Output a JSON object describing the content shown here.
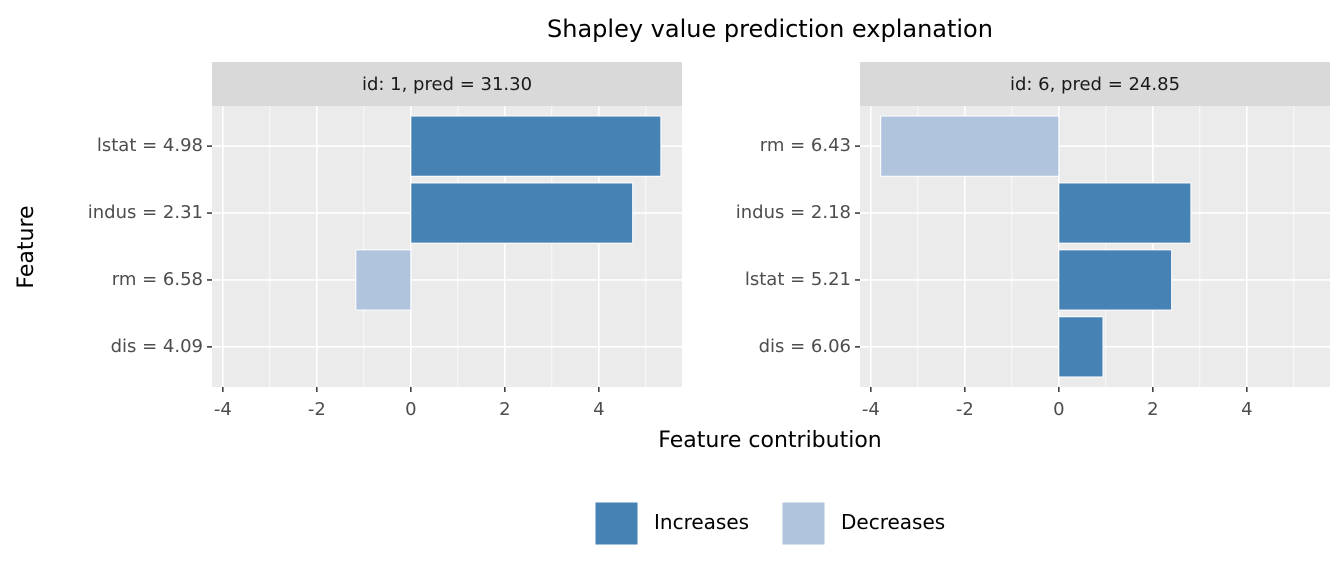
{
  "chart_data": {
    "type": "bar",
    "orientation": "horizontal",
    "title": "Shapley value prediction explanation",
    "xlabel": "Feature contribution",
    "ylabel": "Feature",
    "xlim": [
      -4.23,
      5.77
    ],
    "xticks": [
      -4,
      -2,
      0,
      2,
      4
    ],
    "grid": true,
    "legend_position": "bottom",
    "legend": [
      {
        "name": "Increases",
        "color": "#4682b4"
      },
      {
        "name": "Decreases",
        "color": "#b0c4de"
      }
    ],
    "panels": [
      {
        "strip": "id: 1, pred = 31.30",
        "categories": [
          "lstat = 4.98",
          "indus = 2.31",
          "rm = 6.58",
          "dis = 4.09"
        ],
        "values": [
          5.32,
          4.72,
          -1.17,
          0.0
        ]
      },
      {
        "strip": "id: 6, pred = 24.85",
        "categories": [
          "rm = 6.43",
          "indus = 2.18",
          "lstat = 5.21",
          "dis = 6.06"
        ],
        "values": [
          -3.79,
          2.81,
          2.4,
          0.94
        ]
      }
    ]
  }
}
